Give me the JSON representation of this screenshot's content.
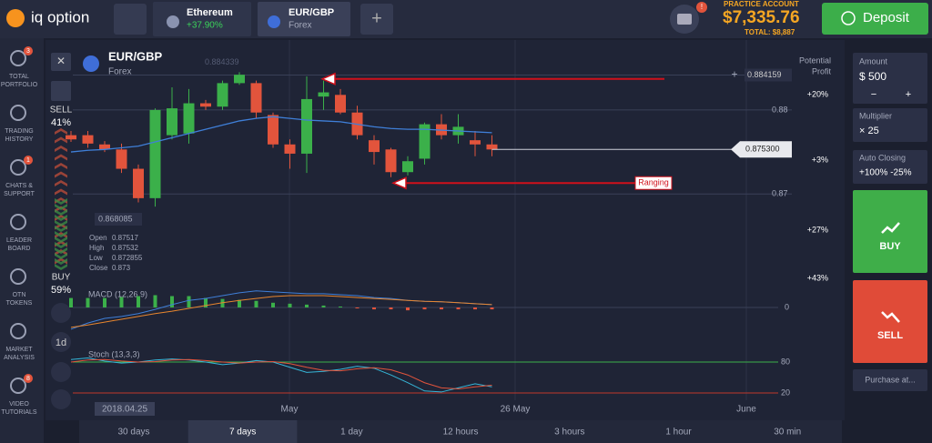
{
  "header": {
    "logo": "iq option",
    "tabs": [
      {
        "name": "Ethereum",
        "sub": "+37.90%"
      },
      {
        "name": "EUR/GBP",
        "sub": "Forex"
      }
    ],
    "account": {
      "label": "PRACTICE ACCOUNT",
      "balance": "$7,335.76",
      "total": "TOTAL: $8,887"
    },
    "camera_badge": "!",
    "deposit": "Deposit"
  },
  "sidebar": [
    {
      "lines": [
        "TOTAL",
        "PORTFOLIO"
      ],
      "badge": "3"
    },
    {
      "lines": [
        "TRADING",
        "HISTORY"
      ]
    },
    {
      "lines": [
        "CHATS &",
        "SUPPORT"
      ],
      "badge": "1"
    },
    {
      "lines": [
        "LEADER",
        "BOARD"
      ]
    },
    {
      "lines": [
        "OTN",
        "TOKENS"
      ]
    },
    {
      "lines": [
        "MARKET",
        "ANALYSIS"
      ]
    },
    {
      "lines": [
        "VIDEO",
        "TUTORIALS"
      ],
      "badge": "8"
    }
  ],
  "chart_data": {
    "type": "candlestick",
    "title": "EUR/GBP",
    "subtitle": "Forex",
    "open": [
      0.877,
      0.877,
      0.8759,
      0.8753,
      0.873,
      0.8695,
      0.877,
      0.8772,
      0.8808,
      0.8804,
      0.8832,
      0.8832,
      0.8794,
      0.8759,
      0.8748,
      0.8816,
      0.8818,
      0.8797,
      0.8764,
      0.8753,
      0.8726,
      0.8742,
      0.8783,
      0.877,
      0.8764,
      0.8759
    ],
    "high": [
      0.8775,
      0.8775,
      0.8763,
      0.876,
      0.8735,
      0.8802,
      0.8827,
      0.8825,
      0.8812,
      0.8835,
      0.8845,
      0.8835,
      0.8797,
      0.8765,
      0.884,
      0.8835,
      0.8825,
      0.8805,
      0.877,
      0.8755,
      0.8745,
      0.8785,
      0.8795,
      0.8795,
      0.8775,
      0.877
    ],
    "low": [
      0.8762,
      0.8755,
      0.875,
      0.8725,
      0.869,
      0.8685,
      0.8765,
      0.876,
      0.88,
      0.88,
      0.883,
      0.879,
      0.8755,
      0.873,
      0.8725,
      0.88,
      0.8795,
      0.8765,
      0.8735,
      0.872,
      0.8722,
      0.8735,
      0.8765,
      0.876,
      0.8745,
      0.8745
    ],
    "close": [
      0.8765,
      0.876,
      0.8753,
      0.873,
      0.8695,
      0.88,
      0.8802,
      0.8808,
      0.8804,
      0.8832,
      0.8842,
      0.8797,
      0.8759,
      0.8748,
      0.8813,
      0.8821,
      0.8797,
      0.877,
      0.875,
      0.8726,
      0.8739,
      0.8783,
      0.877,
      0.878,
      0.8759,
      0.8753
    ],
    "up_color": "#3bb04a",
    "down_color": "#e2543c",
    "ma": {
      "color": "#3f7fd8",
      "values": [
        0.875,
        0.8752,
        0.8753,
        0.8755,
        0.8757,
        0.8762,
        0.8767,
        0.8772,
        0.8777,
        0.8782,
        0.8787,
        0.879,
        0.8792,
        0.879,
        0.8788,
        0.8787,
        0.8786,
        0.8783,
        0.878,
        0.8778,
        0.8777,
        0.8777,
        0.8776,
        0.8775,
        0.8774,
        0.8773
      ]
    },
    "ylim": [
      0.8606,
      0.8866
    ],
    "yticks": [
      0.88,
      0.87
    ],
    "grid": true,
    "level_line": 0.884159,
    "current_price": {
      "value": 0.8753,
      "label": "0.875300"
    },
    "high_marker": 0.884339,
    "low_marker": 0.868085,
    "arrows": [
      {
        "level": 0.8837
      },
      {
        "level": 0.8713,
        "text": "Ranging"
      }
    ],
    "x_labels": [
      "2018.04.25",
      "May",
      "26 May",
      "June"
    ],
    "ohlc_info": {
      "labels": [
        "Open",
        "High",
        "Low",
        "Close"
      ],
      "values": [
        0.87517,
        0.87532,
        0.872855,
        0.873
      ]
    },
    "sentiment": {
      "sell": "SELL",
      "sell_pct": "41%",
      "buy": "BUY",
      "buy_pct": "59%"
    },
    "potential_profit": [
      "Potential",
      "Profit"
    ],
    "profit_labels": [
      "+20%",
      "+3%",
      "+27%",
      "+43%"
    ],
    "tools": [
      "1d"
    ],
    "macd": {
      "label": "MACD (12,26,9)",
      "ylim": [
        -0.0005,
        0.0005
      ],
      "yticks": [
        0
      ],
      "histogram": [
        0.0002,
        0.0002,
        0.0002,
        0.00022,
        0.00024,
        0.00026,
        0.00024,
        0.00024,
        0.0002,
        0.00018,
        0.00016,
        0.00014,
        0.0001,
        8e-05,
        6e-05,
        4e-05,
        2e-05,
        -2e-05,
        -4e-05,
        -4e-05,
        -6e-05,
        -4e-05,
        -4e-05,
        -4e-05,
        -4e-05,
        -4e-05
      ],
      "macd_line": {
        "color": "#3f7fd8",
        "values": [
          -0.00046,
          -0.00033,
          -0.00023,
          -0.00019,
          -0.00013,
          -4e-05,
          6e-05,
          0.00015,
          0.00019,
          0.00025,
          0.00031,
          0.00035,
          0.00033,
          0.00031,
          0.00029,
          0.00029,
          0.00027,
          0.00025,
          0.00021,
          0.00019,
          0.00015,
          0.00013,
          0.00012,
          0.0001,
          8e-05,
          6e-05
        ]
      },
      "signal": {
        "color": "#e8862e",
        "values": [
          -0.00042,
          -0.00037,
          -0.00031,
          -0.00025,
          -0.00019,
          -0.00013,
          -8e-05,
          -2e-05,
          4e-05,
          0.0001,
          0.00015,
          0.00019,
          0.00023,
          0.00025,
          0.00025,
          0.00025,
          0.00023,
          0.00021,
          0.00019,
          0.00017,
          0.00015,
          0.00013,
          0.00012,
          0.0001,
          8e-05,
          6e-05
        ]
      }
    },
    "stoch": {
      "label": "Stoch (13,3,3)",
      "ylim": [
        0,
        100
      ],
      "yticks": [
        80,
        20
      ],
      "k": {
        "color": "#36b6d8",
        "values": [
          85,
          88,
          82,
          78,
          80,
          84,
          86,
          84,
          80,
          75,
          78,
          83,
          80,
          70,
          60,
          62,
          66,
          72,
          68,
          55,
          40,
          24,
          22,
          30,
          38,
          32
        ]
      },
      "d": {
        "color": "#e2543c",
        "values": [
          80,
          84,
          85,
          82,
          80,
          81,
          84,
          85,
          83,
          80,
          78,
          80,
          81,
          77,
          70,
          64,
          63,
          67,
          69,
          65,
          55,
          40,
          30,
          28,
          32,
          35
        ]
      }
    }
  },
  "timeframes": {
    "options": [
      "30 days",
      "7 days",
      "1 day",
      "12 hours",
      "3 hours",
      "1 hour",
      "30 min"
    ],
    "selected": 1
  },
  "right_panel": {
    "amount_label": "Amount",
    "amount": "$ 500",
    "minus": "−",
    "plus": "+",
    "multiplier_label": "Multiplier",
    "multiplier": "× 25",
    "auto_label": "Auto Closing",
    "auto": "+100% -25%",
    "buy": "BUY",
    "sell": "SELL",
    "purchase": "Purchase at..."
  }
}
